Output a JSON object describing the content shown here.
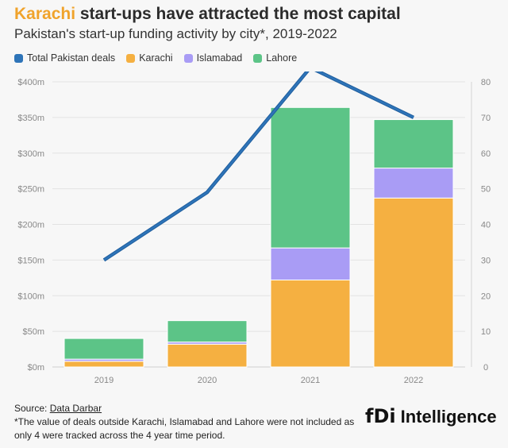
{
  "header": {
    "title_highlight": "Karachi",
    "title_rest": " start-ups have attracted the most capital",
    "subtitle": "Pakistan's start-up funding activity by city*, 2019-2022"
  },
  "legend": [
    {
      "label": "Total Pakistan deals",
      "color": "#2e74b8"
    },
    {
      "label": "Karachi",
      "color": "#f5b041"
    },
    {
      "label": "Islamabad",
      "color": "#a99cf5"
    },
    {
      "label": "Lahore",
      "color": "#5cc487"
    }
  ],
  "chart_data": {
    "type": "bar",
    "stacked": true,
    "categories": [
      "2019",
      "2020",
      "2021",
      "2022"
    ],
    "series": [
      {
        "name": "Karachi",
        "values": [
          8,
          32,
          122,
          237
        ],
        "color": "#f5b041"
      },
      {
        "name": "Islamabad",
        "values": [
          3,
          3,
          45,
          42
        ],
        "color": "#a99cf5"
      },
      {
        "name": "Lahore",
        "values": [
          29,
          30,
          197,
          68
        ],
        "color": "#5cc487"
      }
    ],
    "line_series": {
      "name": "Total Pakistan deals",
      "values": [
        30,
        49,
        84,
        70
      ],
      "color": "#2e74b8",
      "axis": "right"
    },
    "y_left": {
      "ticks": [
        "$0m",
        "$50m",
        "$100m",
        "$150m",
        "$200m",
        "$250m",
        "$300m",
        "$350m",
        "$400m"
      ],
      "ylim": [
        0,
        400
      ]
    },
    "y_right": {
      "ticks": [
        "0",
        "10",
        "20",
        "30",
        "40",
        "50",
        "60",
        "70",
        "80"
      ],
      "ylim": [
        0,
        80
      ]
    },
    "grid": true
  },
  "footer": {
    "source_prefix": "Source: ",
    "source_link": "Data Darbar",
    "note_line1": "*The value of deals outside Karachi, Islamabad and Lahore were not included as",
    "note_line2": "only 4 were tracked across the 4 year time period."
  },
  "logo": {
    "fdi": "fDi",
    "text": "Intelligence"
  }
}
